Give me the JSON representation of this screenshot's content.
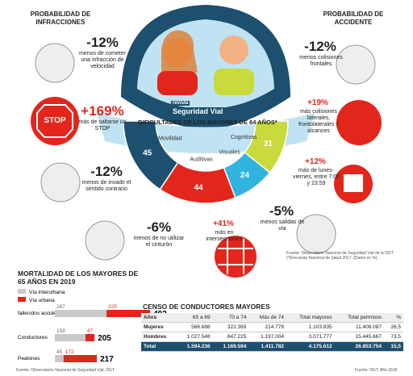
{
  "left": {
    "title": "PROBABILIDAD DE INFRACCIONES",
    "items": [
      {
        "value": "-12%",
        "text": "menos de cometer una infracción de velocidad"
      },
      {
        "value": "+169%",
        "text": "más de saltarse un STOP"
      },
      {
        "value": "-12%",
        "text": "menos de invadir el sentido contrario"
      },
      {
        "value": "-6%",
        "text": "menos de no utilizar el cinturón"
      }
    ]
  },
  "stop_sign": "STOP",
  "right": {
    "title": "PROBABILIDAD DE ACCIDENTE",
    "items": [
      {
        "value": "-12%",
        "text": "menos colisiones frontales"
      },
      {
        "value": "+19%",
        "text": "más colisiones laterales, frontolaterales y alcances"
      },
      {
        "value": "+12%",
        "text": "más de lunes-viernes, entre 7:00 y 23:59"
      },
      {
        "value": "-5%",
        "text": "menos salidas de vía"
      },
      {
        "value": "+41%",
        "text": "más en intersecciones"
      }
    ]
  },
  "center": {
    "brand_top": "revista",
    "brand": "Seguridad Vial",
    "title": "DIFICULTADES DE LOS MAYORES DE 64 AÑOS*",
    "segments": [
      {
        "label": "Movilidad",
        "value": 45,
        "color": "#1d4f6f"
      },
      {
        "label": "Auditivas",
        "value": 44,
        "color": "#e2261c"
      },
      {
        "label": "Visuales",
        "value": 24,
        "color": "#30b4de"
      },
      {
        "label": "Cognitivas",
        "value": 31,
        "color": "#c9da3c"
      }
    ],
    "source": "Fuente: Observatorio Nacional de Seguridad Vial de la DGT (*)Encuesta Nacional de Salud 2017. (Datos en %)"
  },
  "mortality": {
    "title": "MORTALIDAD DE LOS MAYORES DE 65 AÑOS EN 2019",
    "legend": [
      "Vía interurbana",
      "Vía urbana"
    ],
    "rows": [
      {
        "label": "fallecidos accidente de tráfico",
        "interurbana": 267,
        "urbana": 225,
        "total": 492
      },
      {
        "label": "Conductores",
        "interurbana": 158,
        "urbana": 47,
        "total": 205
      },
      {
        "label": "Peatones",
        "interurbana": 45,
        "urbana": 172,
        "total": 217
      }
    ],
    "source": "Fuente: Observatorio Nacional de Seguridad Vial. DGT"
  },
  "census": {
    "title": "CENSO DE CONDUCTORES MAYORES",
    "header": [
      "Años",
      "65 a 69",
      "70 a 74",
      "Más de 74",
      "Total mayores",
      "Total permisos",
      "%"
    ],
    "rows": [
      [
        "Mujeres",
        "566.688",
        "322.369",
        "214.778",
        "1.103.835",
        "11.408.087",
        "26,5"
      ],
      [
        "Hombres",
        "1.027.548",
        "847.225",
        "1.197.004",
        "3.071.777",
        "15.445.667",
        "73,5"
      ],
      [
        "Total",
        "1.594.236",
        "1.169.594",
        "1.411.782",
        "4.175.612",
        "26.853.754",
        "15,5"
      ]
    ],
    "source": "Fuente: DGT. Año 2018"
  }
}
